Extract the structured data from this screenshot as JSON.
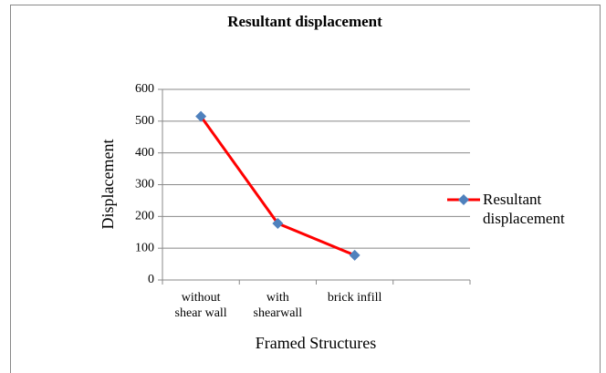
{
  "chart_data": {
    "type": "line",
    "title": "Resultant displacement",
    "xlabel": "Framed Structures",
    "ylabel": "Displacement",
    "categories": [
      "without\nshear wall",
      "with\nshearwall",
      "brick infill",
      null
    ],
    "series": [
      {
        "name": "Resultant displacement",
        "color": "#ff0000",
        "marker_color": "#4f81bd",
        "values": [
          515,
          178,
          78,
          null
        ]
      }
    ],
    "ylim": [
      0,
      600
    ],
    "yticks": [
      0,
      100,
      200,
      300,
      400,
      500,
      600
    ],
    "grid": true,
    "legend": "right"
  }
}
